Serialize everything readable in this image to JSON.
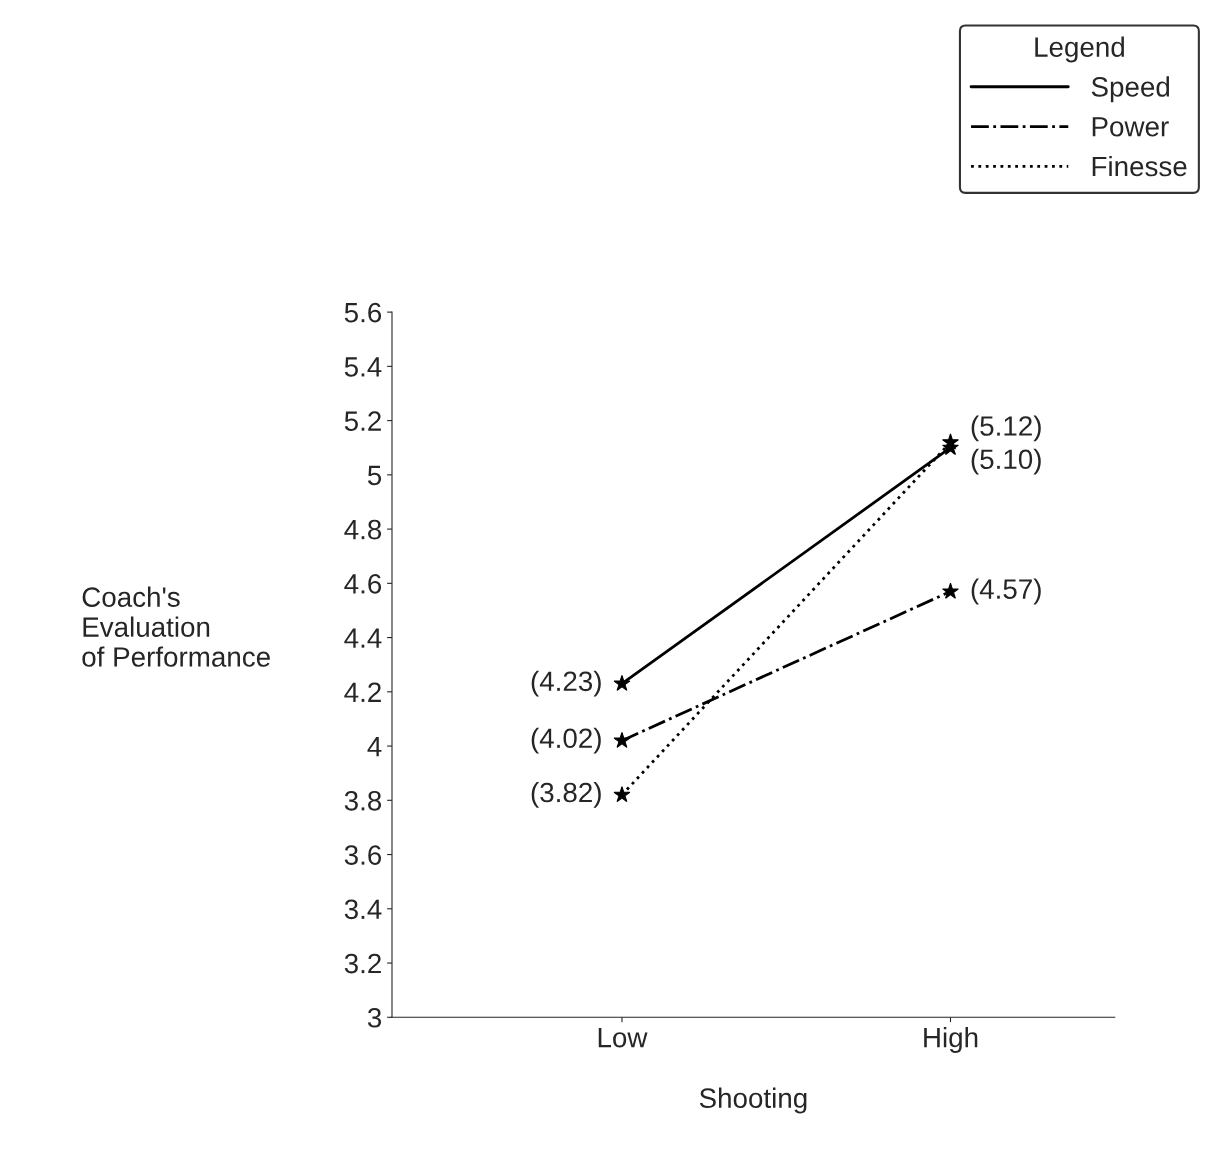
{
  "chart_data": {
    "type": "line",
    "xlabel": "Shooting",
    "ylabel": "Coach's\nEvaluation\nof Performance",
    "legend_title": "Legend",
    "categories": [
      "Low",
      "High"
    ],
    "series": [
      {
        "name": "Speed",
        "color": "#000000",
        "line_style": "solid",
        "values": [
          4.23,
          5.1
        ],
        "value_labels": [
          "(4.23)",
          "(5.10)"
        ]
      },
      {
        "name": "Power",
        "color": "#000000",
        "line_style": "dashed",
        "values": [
          4.02,
          4.57
        ],
        "value_labels": [
          "(4.02)",
          "(4.57)"
        ]
      },
      {
        "name": "Finesse",
        "color": "#000000",
        "line_style": "dotted",
        "values": [
          3.82,
          5.12
        ],
        "value_labels": [
          "(3.82)",
          "(5.12)"
        ]
      }
    ],
    "ylim": [
      3,
      5.6
    ],
    "yticks": [
      3,
      3.2,
      3.4,
      3.6,
      3.8,
      4,
      4.2,
      4.4,
      4.6,
      4.8,
      5,
      5.2,
      5.4,
      5.6
    ],
    "marker": "star",
    "grid": false,
    "legend": "top right"
  }
}
